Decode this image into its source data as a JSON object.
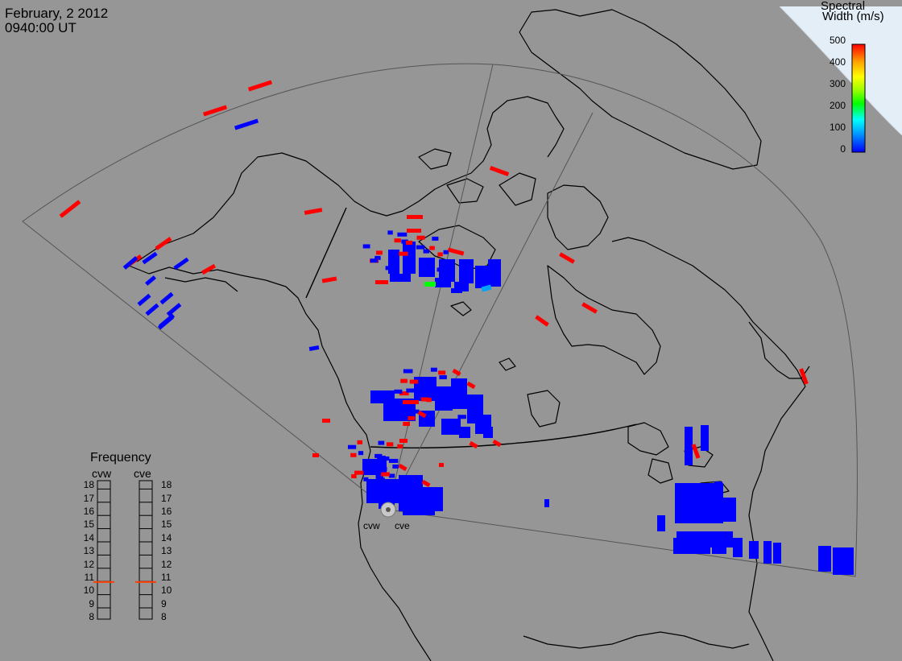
{
  "header": {
    "date": "February, 2 2012",
    "time": "0940:00 UT"
  },
  "colorbar": {
    "title_line1": "Spectral",
    "title_line2": "Width (m/s)",
    "ticks": [
      "500",
      "400",
      "300",
      "200",
      "100",
      "0"
    ],
    "colors": [
      "#0000ff",
      "#00a0ff",
      "#00ffff",
      "#00ff00",
      "#a0ff00",
      "#ffff00",
      "#ffa000",
      "#ff0000"
    ]
  },
  "radars": {
    "west_label": "cvw",
    "east_label": "cve"
  },
  "frequency_panel": {
    "title": "Frequency",
    "left_label": "cvw",
    "right_label": "cve",
    "scale": [
      "18",
      "17",
      "16",
      "15",
      "14",
      "13",
      "12",
      "11",
      "10",
      "9",
      "8"
    ],
    "cvw_marker_mhz": 10.7,
    "cve_marker_mhz": 10.7
  },
  "colors": {
    "background": "#969696",
    "ocean_corner": "#e4eef6",
    "low_width": "#0000ff",
    "high_width": "#ff0000",
    "marker": "#ff3c00"
  }
}
